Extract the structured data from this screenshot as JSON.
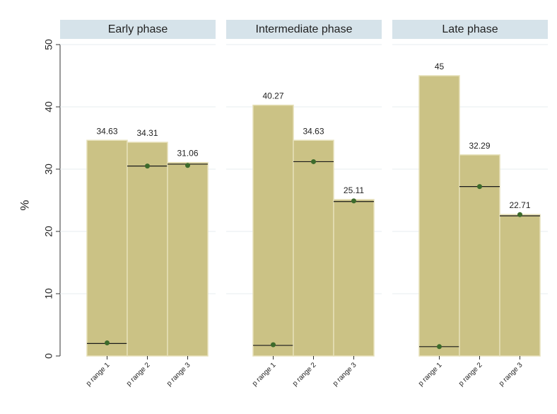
{
  "chart_data": {
    "type": "bar",
    "ylabel": "%",
    "ylim": [
      0,
      50
    ],
    "yticks": [
      0,
      10,
      20,
      30,
      40,
      50
    ],
    "categories": [
      "p range 1",
      "p range 2",
      "p range 3"
    ],
    "panels": [
      {
        "title": "Early phase",
        "values": [
          34.63,
          34.31,
          31.06
        ],
        "value_labels": [
          "34.63",
          "34.31",
          "31.06"
        ],
        "line_values": [
          2.0,
          30.5,
          30.8
        ],
        "point_values": [
          2.1,
          30.5,
          30.6
        ]
      },
      {
        "title": "Intermediate phase",
        "values": [
          40.27,
          34.63,
          25.11
        ],
        "value_labels": [
          "40.27",
          "34.63",
          "25.11"
        ],
        "line_values": [
          1.7,
          31.2,
          24.8
        ],
        "point_values": [
          1.8,
          31.2,
          24.9
        ]
      },
      {
        "title": "Late phase",
        "values": [
          45,
          32.29,
          22.71
        ],
        "value_labels": [
          "45",
          "32.29",
          "22.71"
        ],
        "line_values": [
          1.5,
          27.2,
          22.5
        ],
        "point_values": [
          1.5,
          27.2,
          22.7
        ]
      }
    ],
    "grid": true,
    "colors": {
      "bar_fill": "#cbc285",
      "bar_stroke": "#e6e0b8",
      "point": "#3d6b2c",
      "line": "#1a1a1a",
      "panel_header": "#d6e3ea",
      "grid": "#e7ecef"
    }
  }
}
